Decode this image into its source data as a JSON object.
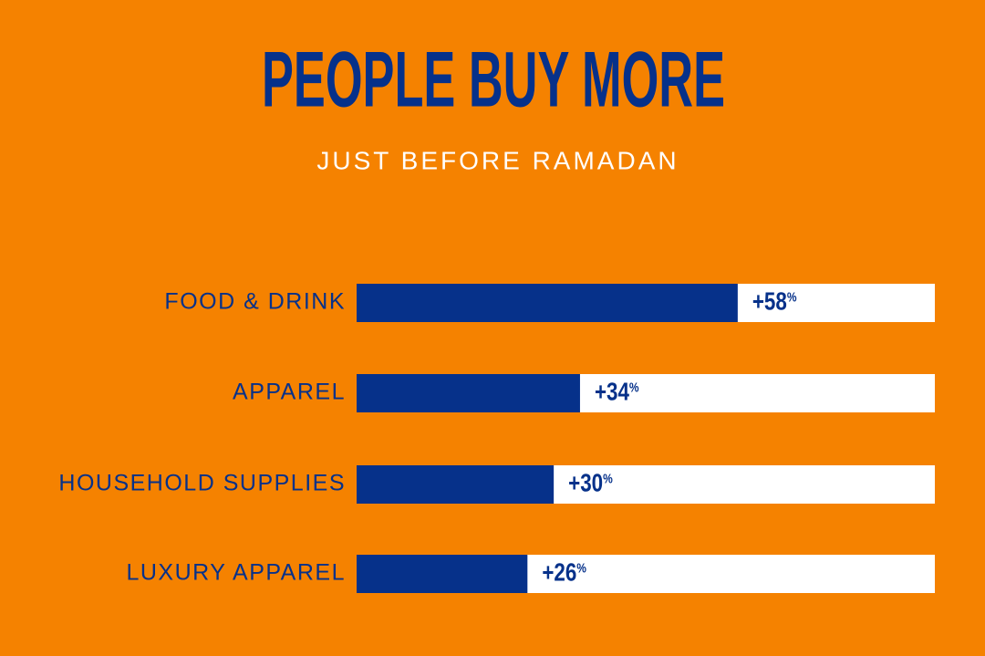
{
  "chart_data": {
    "type": "bar",
    "title": "PEOPLE BUY MORE",
    "subtitle": "JUST BEFORE RAMADAN",
    "categories": [
      "FOOD & DRINK",
      "APPAREL",
      "HOUSEHOLD SUPPLIES",
      "LUXURY APPAREL"
    ],
    "values": [
      58,
      34,
      30,
      26
    ],
    "value_labels": [
      "+58%",
      "+34%",
      "+30%",
      "+26%"
    ],
    "color": "#06318a",
    "track_color": "#ffffff",
    "xlim": [
      0,
      88
    ]
  }
}
